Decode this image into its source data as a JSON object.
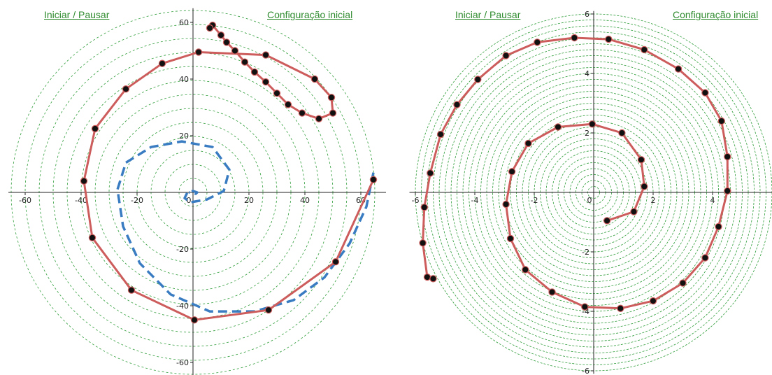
{
  "colors": {
    "grid": "#2f9d3a",
    "red": "#cd5c5c",
    "blue": "#3a7cc1",
    "point": "#111111",
    "link": "#2e8b2e"
  },
  "panels": [
    {
      "start_pause": "Iniciar / Pausar",
      "initial_config": "Configuração inicial",
      "chart_data": {
        "type": "scatter",
        "title": "",
        "xlabel": "",
        "ylabel": "",
        "xlim": [
          -66,
          73
        ],
        "ylim": [
          -66,
          65
        ],
        "xticks": [
          -60,
          -40,
          -20,
          0,
          20,
          40,
          60
        ],
        "yticks": [
          -60,
          -40,
          -20,
          20,
          40,
          60
        ],
        "xtick_labels": [
          "-60",
          "-40",
          "-20",
          "0",
          "20",
          "40",
          "60"
        ],
        "ytick_labels": [
          "-60",
          "-40",
          "-20",
          "20",
          "40",
          "60"
        ],
        "grid": "concentric-circles",
        "series": [
          {
            "style": "red-polyline-with-points",
            "x": [
              64.5,
              51,
              27,
              0.5,
              -22,
              -36,
              -39,
              -35,
              -24,
              -11,
              2,
              26,
              43.5,
              49.5,
              50,
              45,
              39,
              34,
              30,
              26,
              22,
              18.5,
              15,
              12,
              10,
              7,
              6
            ],
            "y": [
              4.5,
              -24.5,
              -41.5,
              -45,
              -34.5,
              -16,
              4,
              22.5,
              36.5,
              45.5,
              49.5,
              48.5,
              40,
              33.5,
              28,
              26,
              28,
              31,
              35,
              39,
              42.5,
              46,
              50,
              53,
              55.5,
              59,
              58
            ]
          },
          {
            "style": "blue-dashed",
            "x": [
              64.5,
              62,
              56,
              47,
              36,
              22,
              6,
              -8,
              -19,
              -25,
              -27,
              -24,
              -15,
              -4,
              7,
              13,
              11,
              5,
              -1,
              -3,
              -2,
              0,
              1.5,
              1,
              -1.5
            ],
            "y": [
              7,
              -5,
              -18,
              -30,
              -38,
              -42,
              -42,
              -36,
              -25,
              -12,
              1,
              10.5,
              16,
              18,
              16,
              8,
              0.5,
              -2.5,
              -3.5,
              -2,
              0,
              0.5,
              0,
              -0.5,
              0
            ]
          }
        ]
      }
    },
    {
      "start_pause": "Iniciar / Pausar",
      "initial_config": "Configuração inicial",
      "chart_data": {
        "type": "scatter",
        "title": "",
        "xlabel": "",
        "ylabel": "",
        "xlim": [
          -6.2,
          6.0
        ],
        "ylim": [
          -6.1,
          6.1
        ],
        "xticks": [
          -6,
          -4,
          -2,
          0,
          2,
          4
        ],
        "yticks": [
          -6,
          -4,
          -2,
          2,
          4,
          6
        ],
        "xtick_labels": [
          "-6",
          "-4",
          "-2",
          "0",
          "2",
          "4"
        ],
        "ytick_labels": [
          "-6",
          "-4",
          "-2",
          "2",
          "4",
          "6"
        ],
        "grid": "concentric-circles",
        "series": [
          {
            "style": "red-polyline-with-points",
            "x": [
              0.45,
              1.35,
              1.7,
              1.6,
              0.95,
              -0.05,
              -1.2,
              -2.2,
              -2.75,
              -2.95,
              -2.8,
              -2.3,
              -1.4,
              -0.3,
              0.9,
              2.0,
              3.0,
              3.75,
              4.2,
              4.5,
              4.5,
              4.3,
              3.75,
              2.85,
              1.7,
              0.5,
              -0.65,
              -1.9,
              -2.95,
              -3.9,
              -4.6,
              -5.15,
              -5.5,
              -5.7,
              -5.75,
              -5.6,
              -5.4
            ],
            "y": [
              -0.95,
              -0.65,
              0.2,
              1.1,
              2.0,
              2.3,
              2.2,
              1.65,
              0.7,
              -0.4,
              -1.55,
              -2.6,
              -3.35,
              -3.85,
              -3.9,
              -3.65,
              -3.05,
              -2.2,
              -1.15,
              0.05,
              1.2,
              2.4,
              3.35,
              4.15,
              4.8,
              5.15,
              5.2,
              5.05,
              4.6,
              3.8,
              2.95,
              1.95,
              0.65,
              -0.5,
              -1.7,
              -2.85,
              -2.9
            ]
          }
        ]
      }
    }
  ]
}
